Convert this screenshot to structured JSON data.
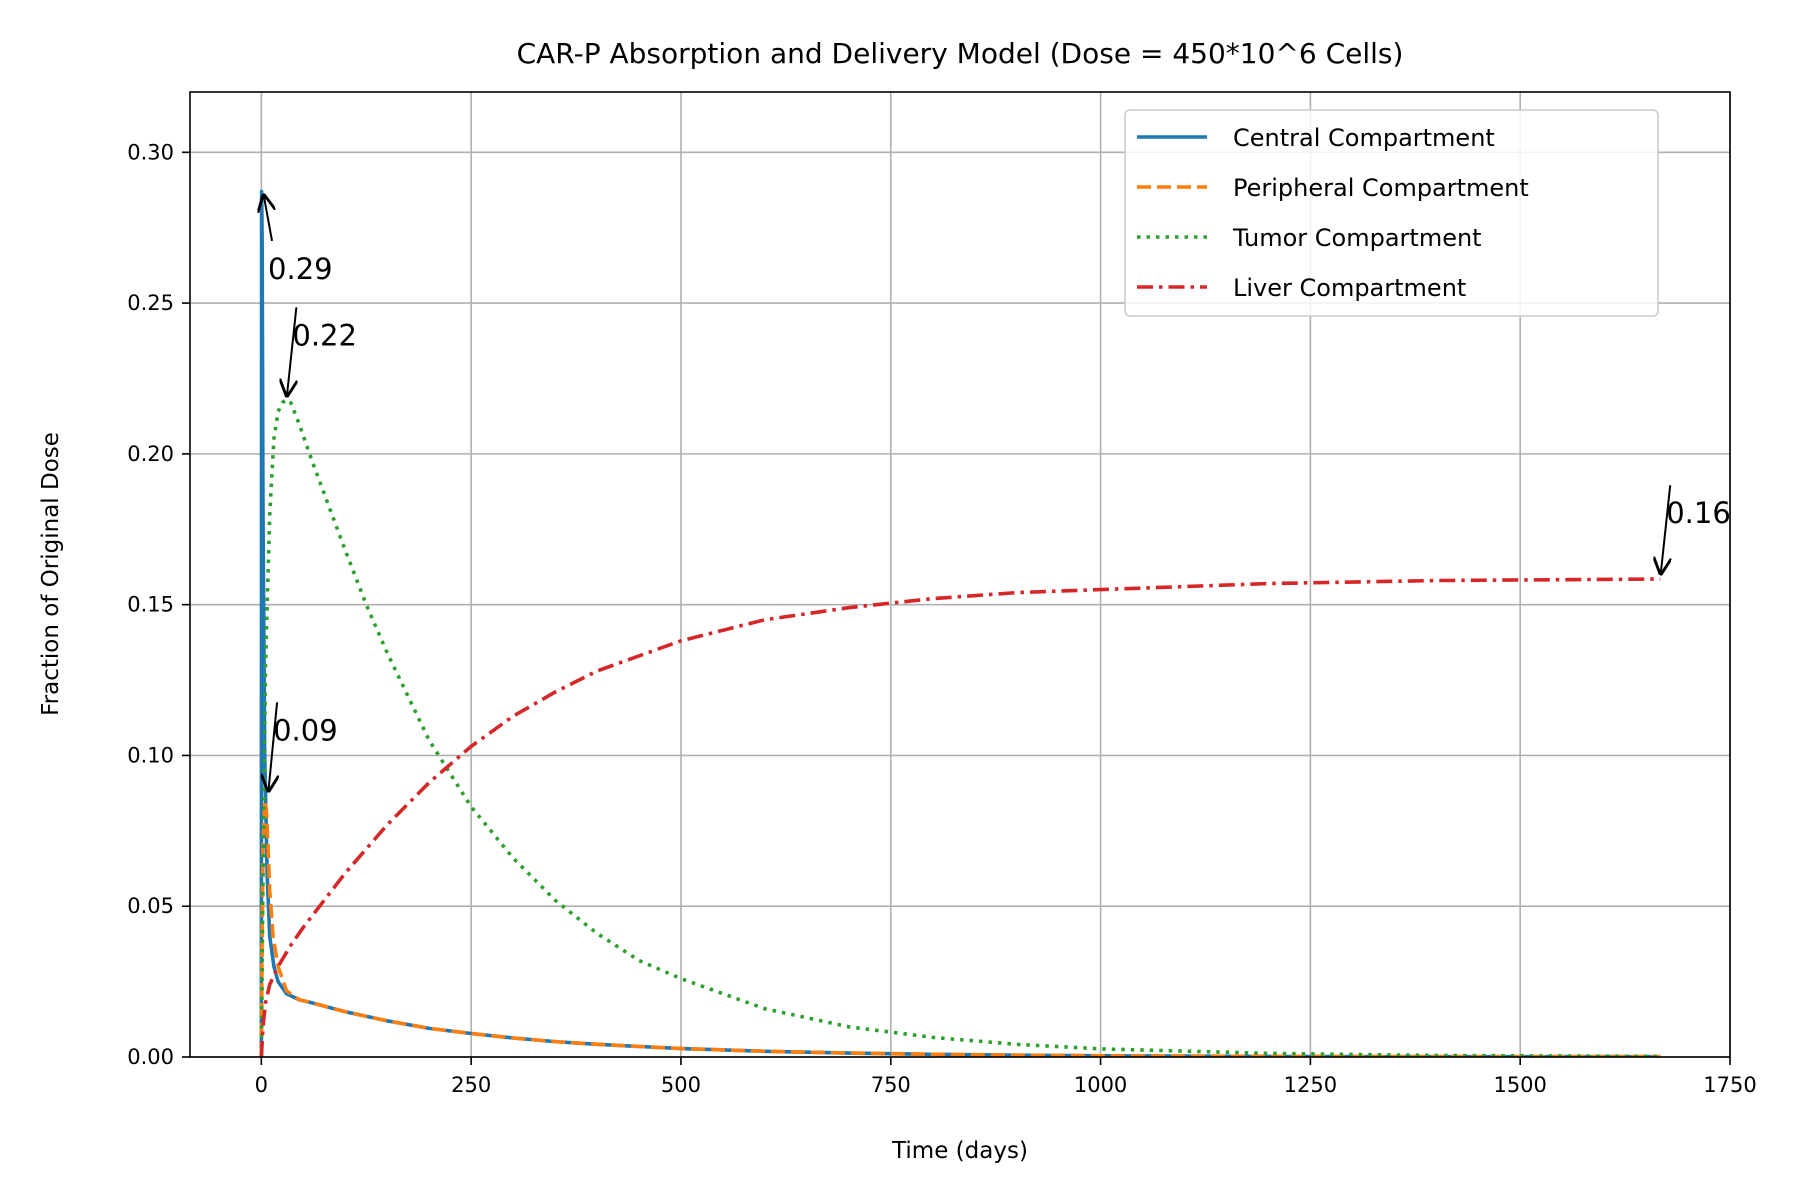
{
  "chart_data": {
    "type": "line",
    "title": "CAR-P Absorption and Delivery Model (Dose = 450*10^6 Cells)",
    "xlabel": "Time (days)",
    "ylabel": "Fraction of Original Dose",
    "xlim": [
      -85,
      1750
    ],
    "ylim": [
      0,
      0.32
    ],
    "xticks": [
      0,
      250,
      500,
      750,
      1000,
      1250,
      1500,
      1750
    ],
    "xtick_labels": [
      "0",
      "250",
      "500",
      "750",
      "1000",
      "1250",
      "1500",
      "1750"
    ],
    "yticks": [
      0,
      0.05,
      0.1,
      0.15,
      0.2,
      0.25,
      0.3
    ],
    "ytick_labels": [
      "0.00",
      "0.05",
      "0.10",
      "0.15",
      "0.20",
      "0.25",
      "0.30"
    ],
    "grid": true,
    "legend_position": "top-right",
    "series": [
      {
        "name": "Central Compartment",
        "color": "#1f77b4",
        "dash": "solid",
        "x": [
          0,
          0.3,
          1,
          2,
          4,
          7,
          10,
          15,
          20,
          30,
          45,
          60,
          80,
          100,
          150,
          200,
          250,
          300,
          350,
          400,
          500,
          600,
          700,
          800,
          900,
          1000,
          1200,
          1400,
          1667
        ],
        "y": [
          0,
          0.287,
          0.27,
          0.18,
          0.1,
          0.06,
          0.04,
          0.03,
          0.025,
          0.021,
          0.019,
          0.018,
          0.0165,
          0.015,
          0.012,
          0.0095,
          0.0078,
          0.0063,
          0.0051,
          0.0042,
          0.0028,
          0.0019,
          0.0013,
          0.0009,
          0.0006,
          0.0004,
          0.0002,
          0.0001,
          0.0001
        ]
      },
      {
        "name": "Peripheral Compartment",
        "color": "#ff7f0e",
        "dash": "dashed",
        "x": [
          0,
          1,
          2,
          4,
          6,
          8,
          10,
          14,
          20,
          30,
          45,
          60,
          80,
          100,
          150,
          200,
          250,
          300,
          350,
          400,
          500,
          600,
          700,
          800,
          900,
          1000,
          1200,
          1400,
          1667
        ],
        "y": [
          0,
          0.04,
          0.07,
          0.085,
          0.082,
          0.07,
          0.055,
          0.04,
          0.03,
          0.022,
          0.019,
          0.018,
          0.0165,
          0.015,
          0.012,
          0.0095,
          0.0078,
          0.0063,
          0.0051,
          0.0042,
          0.0028,
          0.0019,
          0.0013,
          0.0009,
          0.0006,
          0.0004,
          0.0002,
          0.0001,
          0.0001
        ]
      },
      {
        "name": "Tumor Compartment",
        "color": "#2ca02c",
        "dash": "dotted",
        "x": [
          0,
          2,
          5,
          10,
          15,
          20,
          25,
          30,
          35,
          45,
          60,
          80,
          100,
          125,
          150,
          200,
          250,
          300,
          350,
          400,
          450,
          500,
          600,
          700,
          800,
          900,
          1000,
          1200,
          1400,
          1667
        ],
        "y": [
          0,
          0.06,
          0.13,
          0.18,
          0.205,
          0.214,
          0.217,
          0.218,
          0.217,
          0.21,
          0.198,
          0.183,
          0.168,
          0.15,
          0.134,
          0.105,
          0.083,
          0.066,
          0.052,
          0.041,
          0.032,
          0.026,
          0.016,
          0.01,
          0.0065,
          0.0042,
          0.0027,
          0.0012,
          0.0005,
          0.0002
        ]
      },
      {
        "name": "Liver Compartment",
        "color": "#d62728",
        "dash": "dashdot",
        "x": [
          0,
          2,
          5,
          10,
          20,
          35,
          50,
          75,
          100,
          150,
          200,
          250,
          300,
          350,
          400,
          500,
          600,
          700,
          800,
          900,
          1000,
          1200,
          1400,
          1667
        ],
        "y": [
          0,
          0.01,
          0.018,
          0.024,
          0.03,
          0.037,
          0.043,
          0.052,
          0.061,
          0.077,
          0.091,
          0.103,
          0.113,
          0.121,
          0.128,
          0.138,
          0.145,
          0.149,
          0.152,
          0.154,
          0.155,
          0.157,
          0.158,
          0.1585
        ]
      }
    ],
    "annotations": [
      {
        "text": "0.29",
        "x": 2,
        "y": 0.287,
        "text_x": 8,
        "text_y": 0.258
      },
      {
        "text": "0.22",
        "x": 30,
        "y": 0.218,
        "text_x": 37,
        "text_y": 0.236
      },
      {
        "text": "0.09",
        "x": 8,
        "y": 0.087,
        "text_x": 14,
        "text_y": 0.105
      },
      {
        "text": "0.16",
        "x": 1667,
        "y": 0.159,
        "text_x": 1674,
        "text_y": 0.177
      }
    ]
  }
}
